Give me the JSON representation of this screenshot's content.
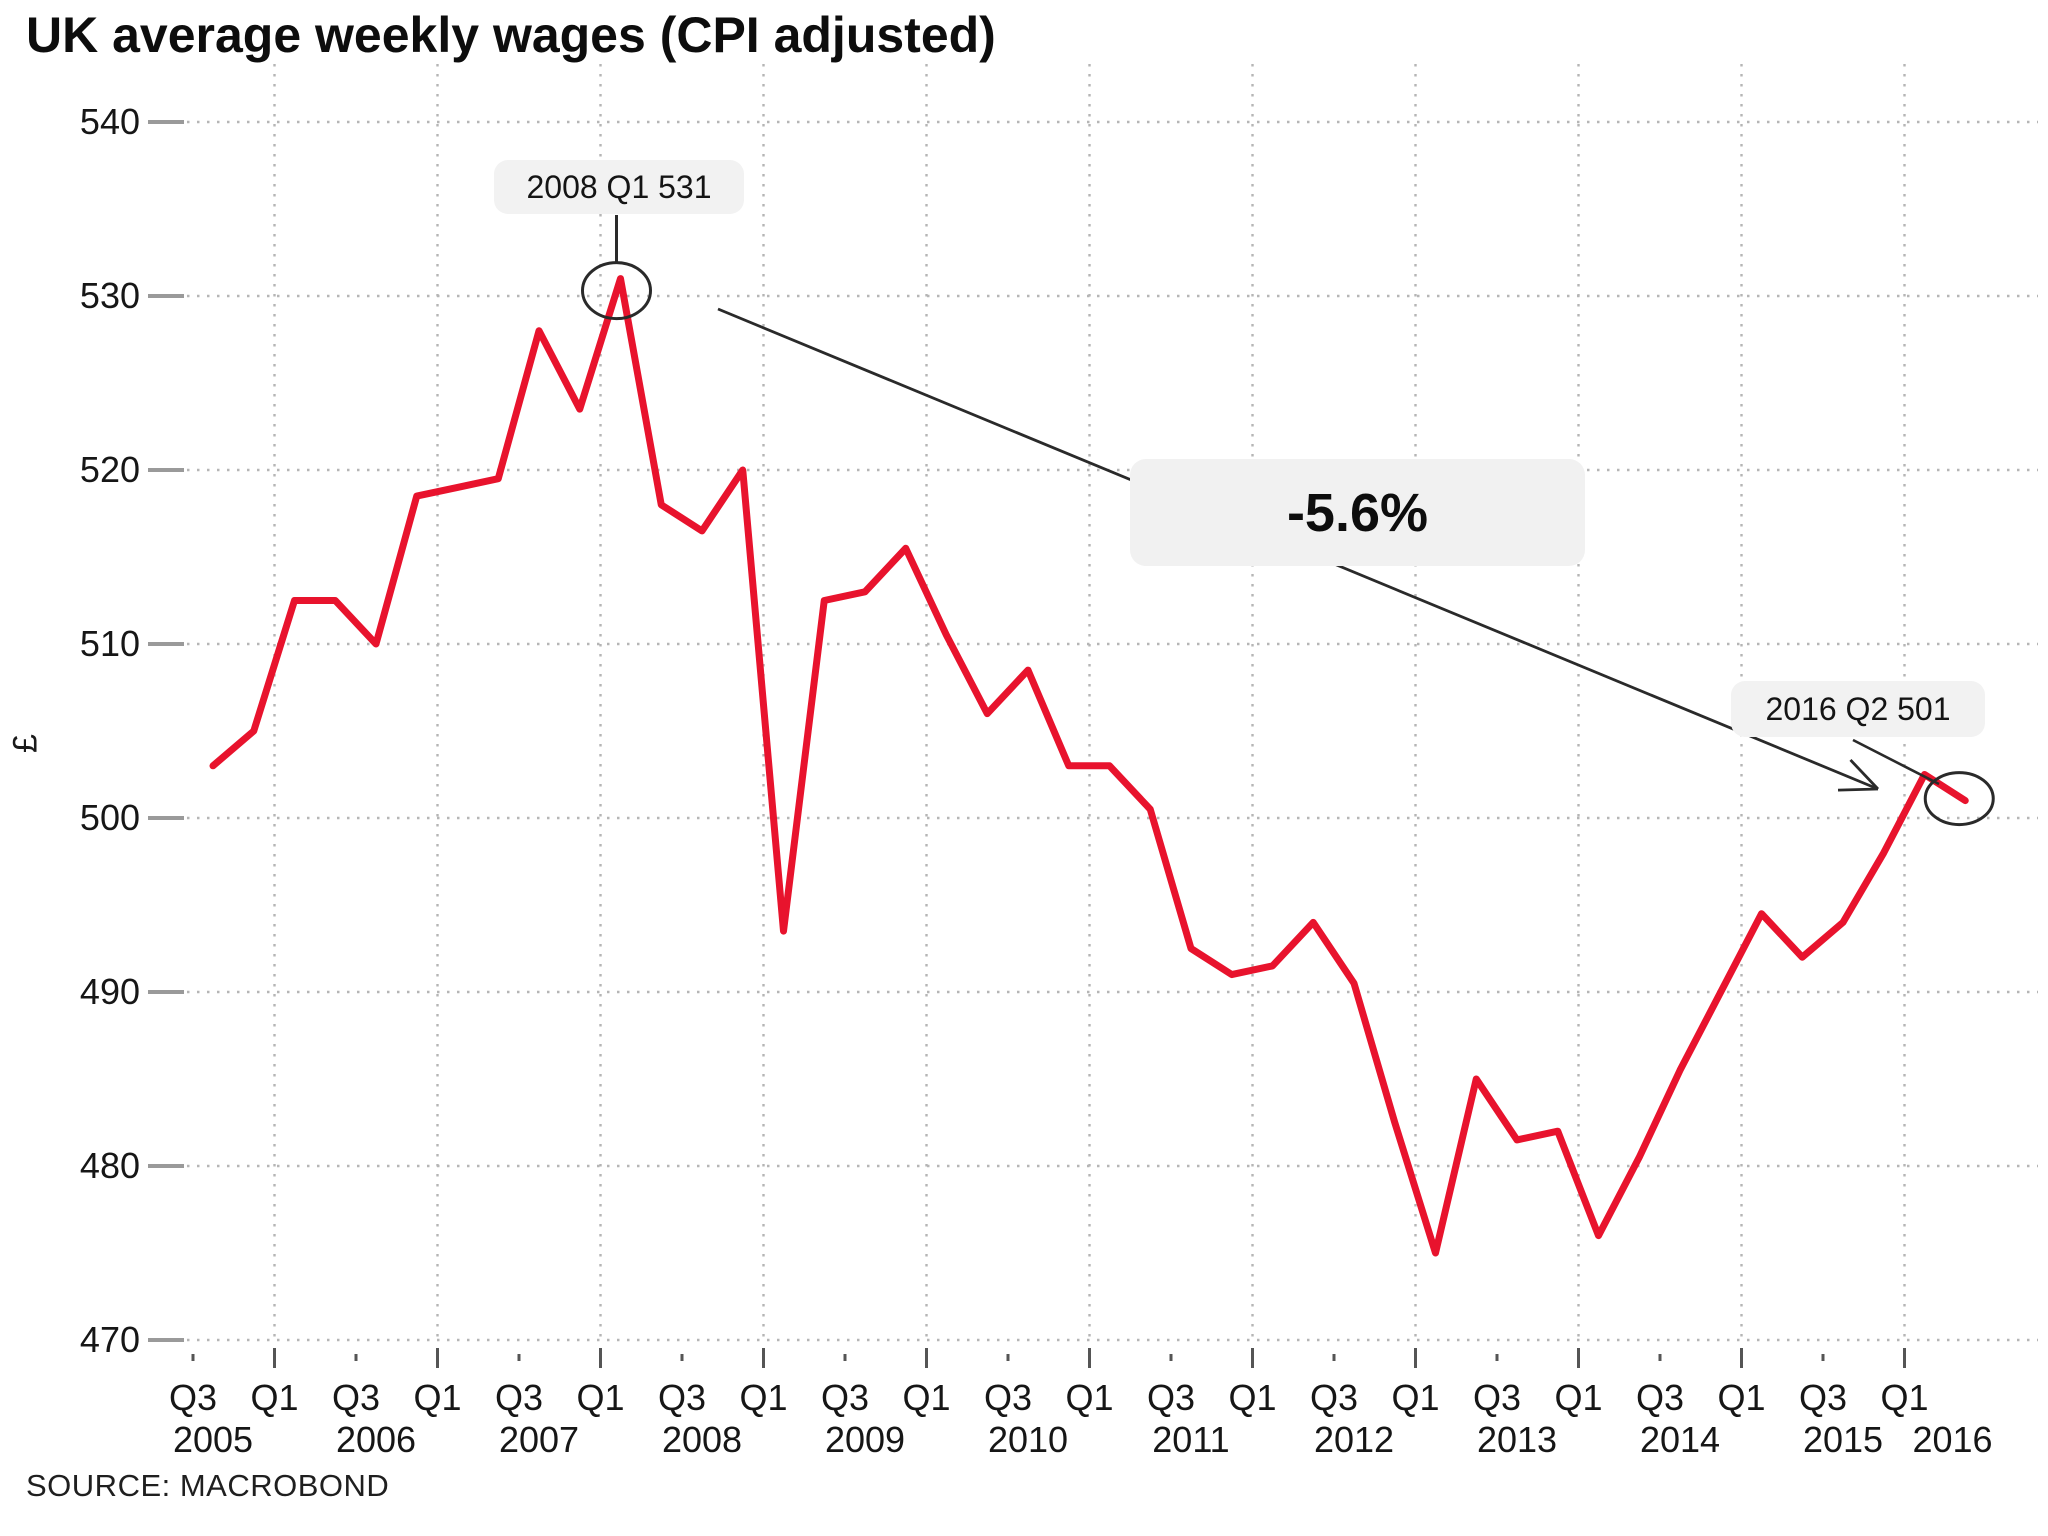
{
  "title": "UK average weekly wages (CPI adjusted)",
  "source": "SOURCE: MACROBOND",
  "y_axis": {
    "unit_label": "£",
    "tick_values": [
      540,
      530,
      520,
      510,
      500,
      490,
      480,
      470
    ]
  },
  "x_axis": {
    "ticks": [
      {
        "q_index": 0,
        "quarter": "Q3",
        "year": "2005"
      },
      {
        "q_index": 2,
        "quarter": "Q1"
      },
      {
        "q_index": 4,
        "quarter": "Q3",
        "year": "2006"
      },
      {
        "q_index": 6,
        "quarter": "Q1"
      },
      {
        "q_index": 8,
        "quarter": "Q3",
        "year": "2007"
      },
      {
        "q_index": 10,
        "quarter": "Q1"
      },
      {
        "q_index": 12,
        "quarter": "Q3",
        "year": "2008"
      },
      {
        "q_index": 14,
        "quarter": "Q1"
      },
      {
        "q_index": 16,
        "quarter": "Q3",
        "year": "2009"
      },
      {
        "q_index": 18,
        "quarter": "Q1"
      },
      {
        "q_index": 20,
        "quarter": "Q3",
        "year": "2010"
      },
      {
        "q_index": 22,
        "quarter": "Q1"
      },
      {
        "q_index": 24,
        "quarter": "Q3",
        "year": "2011"
      },
      {
        "q_index": 26,
        "quarter": "Q1"
      },
      {
        "q_index": 28,
        "quarter": "Q3",
        "year": "2012"
      },
      {
        "q_index": 30,
        "quarter": "Q1"
      },
      {
        "q_index": 32,
        "quarter": "Q3",
        "year": "2013"
      },
      {
        "q_index": 34,
        "quarter": "Q1"
      },
      {
        "q_index": 36,
        "quarter": "Q3",
        "year": "2014"
      },
      {
        "q_index": 38,
        "quarter": "Q1"
      },
      {
        "q_index": 40,
        "quarter": "Q3",
        "year": "2015"
      },
      {
        "q_index": 42,
        "quarter": "Q1",
        "year": "2016"
      }
    ]
  },
  "chart_data": {
    "type": "line",
    "title": "UK average weekly wages (CPI adjusted)",
    "xlabel": "",
    "ylabel": "£",
    "ylim": [
      467,
      543
    ],
    "grid": "dotted",
    "legend": "none",
    "line_color": "#e8132d",
    "x": [
      "2005 Q3",
      "2005 Q4",
      "2006 Q1",
      "2006 Q2",
      "2006 Q3",
      "2006 Q4",
      "2007 Q1",
      "2007 Q2",
      "2007 Q3",
      "2007 Q4",
      "2008 Q1",
      "2008 Q2",
      "2008 Q3",
      "2008 Q4",
      "2009 Q1",
      "2009 Q2",
      "2009 Q3",
      "2009 Q4",
      "2010 Q1",
      "2010 Q2",
      "2010 Q3",
      "2010 Q4",
      "2011 Q1",
      "2011 Q2",
      "2011 Q3",
      "2011 Q4",
      "2012 Q1",
      "2012 Q2",
      "2012 Q3",
      "2012 Q4",
      "2013 Q1",
      "2013 Q2",
      "2013 Q3",
      "2013 Q4",
      "2014 Q1",
      "2014 Q2",
      "2014 Q3",
      "2014 Q4",
      "2015 Q1",
      "2015 Q2",
      "2015 Q3",
      "2015 Q4",
      "2016 Q1",
      "2016 Q2"
    ],
    "values": [
      503,
      505,
      512.5,
      512.5,
      510,
      518.5,
      519,
      519.5,
      528,
      523.5,
      531,
      518,
      516.5,
      520,
      493.5,
      512.5,
      513,
      515.5,
      510.5,
      506,
      508.5,
      503,
      503,
      500.5,
      492.5,
      491,
      491.5,
      494,
      490.5,
      482.5,
      475,
      485,
      481.5,
      482,
      476,
      480.5,
      485.5,
      490,
      494.5,
      492,
      494,
      498,
      502.5,
      501
    ],
    "annotations": [
      {
        "label": "2008 Q1 531",
        "x": "2008 Q1",
        "value": 531
      },
      {
        "label": "2016 Q2 501",
        "x": "2016 Q2",
        "value": 501
      },
      {
        "label": "-5.6%",
        "note": "change from 2008 Q1 to 2016 Q2"
      }
    ]
  }
}
